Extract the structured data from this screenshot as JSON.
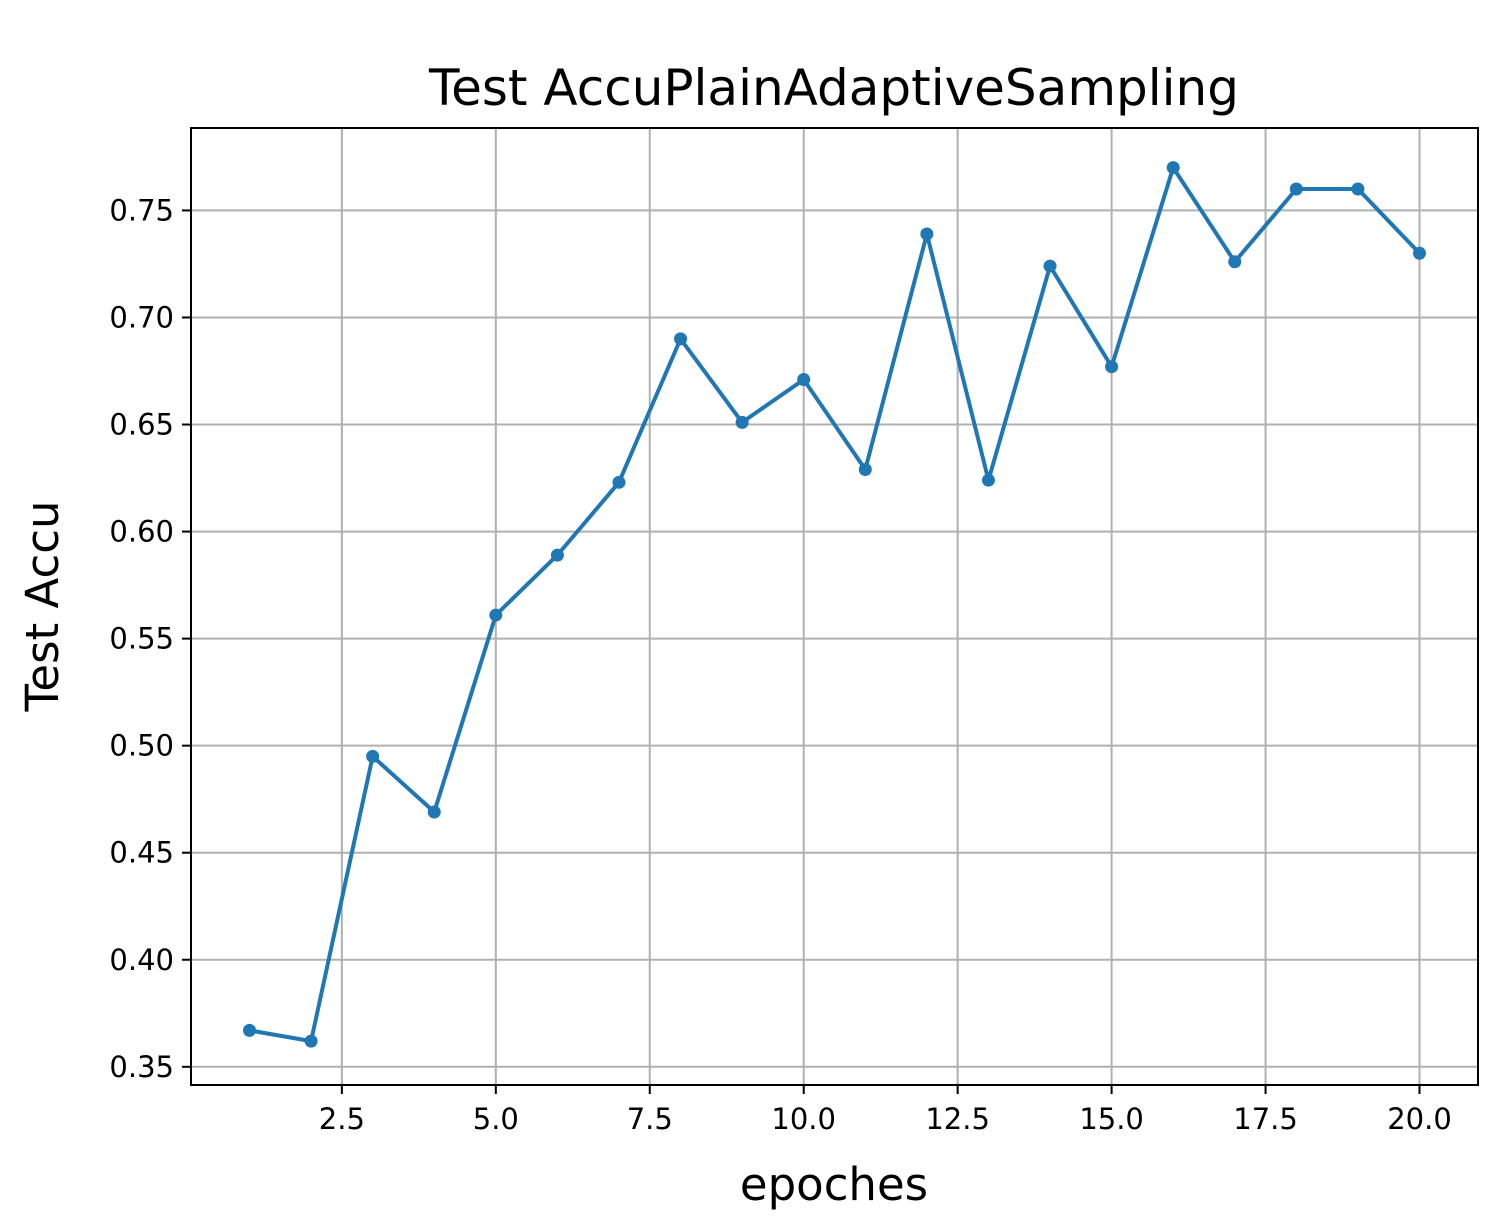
{
  "chart_data": {
    "type": "line",
    "title": "Test AccuPlainAdaptiveSampling",
    "xlabel": "epoches",
    "ylabel": "Test Accu",
    "xlim": [
      0.05,
      20.95
    ],
    "ylim": [
      0.3415,
      0.7885
    ],
    "xticks": [
      2.5,
      5.0,
      7.5,
      10.0,
      12.5,
      15.0,
      17.5,
      20.0
    ],
    "xtick_labels": [
      "2.5",
      "5.0",
      "7.5",
      "10.0",
      "12.5",
      "15.0",
      "17.5",
      "20.0"
    ],
    "yticks": [
      0.35,
      0.4,
      0.45,
      0.5,
      0.55,
      0.6,
      0.65,
      0.7,
      0.75
    ],
    "ytick_labels": [
      "0.35",
      "0.40",
      "0.45",
      "0.50",
      "0.55",
      "0.60",
      "0.65",
      "0.70",
      "0.75"
    ],
    "grid": true,
    "series": [
      {
        "color": "#1f77b4",
        "x": [
          1,
          2,
          3,
          4,
          5,
          6,
          7,
          8,
          9,
          10,
          11,
          12,
          13,
          14,
          15,
          16,
          17,
          18,
          19,
          20
        ],
        "values": [
          0.367,
          0.362,
          0.495,
          0.469,
          0.561,
          0.589,
          0.623,
          0.69,
          0.651,
          0.671,
          0.629,
          0.739,
          0.624,
          0.724,
          0.677,
          0.77,
          0.726,
          0.76,
          0.76,
          0.73
        ]
      }
    ]
  }
}
